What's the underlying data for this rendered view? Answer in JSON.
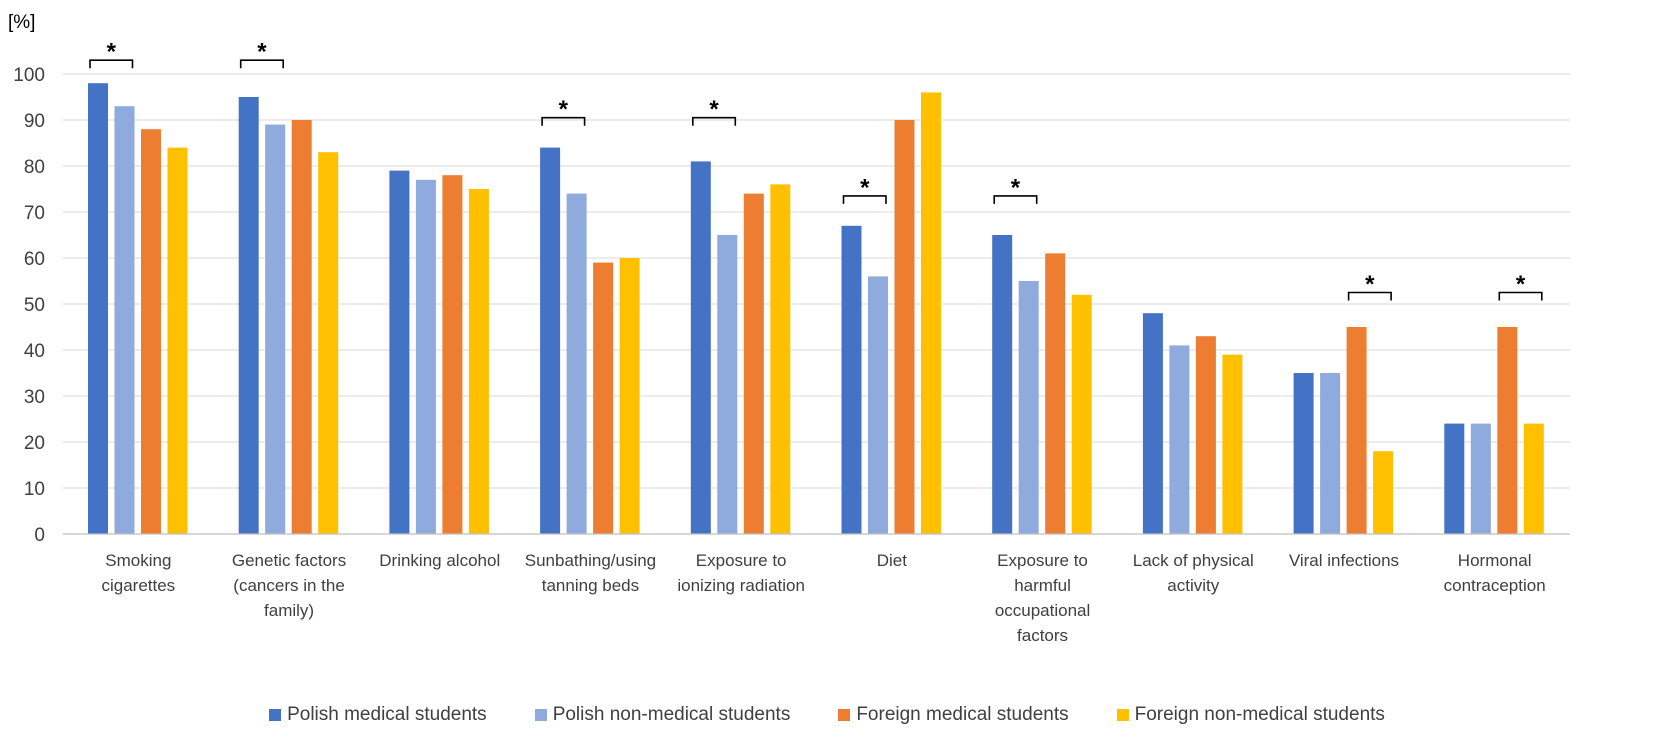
{
  "chart_data": {
    "type": "bar",
    "unit_label": "[%]",
    "ylim": [
      0,
      100
    ],
    "yticks": [
      0,
      10,
      20,
      30,
      40,
      50,
      60,
      70,
      80,
      90,
      100
    ],
    "grid": true,
    "legend_position": "bottom",
    "categories": [
      [
        "Smoking",
        "cigarettes"
      ],
      [
        "Genetic factors",
        "(cancers in the",
        "family)"
      ],
      [
        "Drinking alcohol"
      ],
      [
        "Sunbathing/using",
        "tanning beds"
      ],
      [
        "Exposure to",
        "ionizing radiation"
      ],
      [
        "Diet"
      ],
      [
        "Exposure to",
        "harmful",
        "occupational",
        "factors"
      ],
      [
        "Lack of physical",
        "activity"
      ],
      [
        "Viral infections"
      ],
      [
        "Hormonal",
        "contraception"
      ]
    ],
    "series": [
      {
        "name": "Polish medical students",
        "color": "#4472C4",
        "values": [
          98,
          95,
          79,
          84,
          81,
          67,
          65,
          48,
          35,
          24
        ]
      },
      {
        "name": "Polish non-medical students",
        "color": "#8FAADC",
        "values": [
          93,
          89,
          77,
          74,
          65,
          56,
          55,
          41,
          35,
          24
        ]
      },
      {
        "name": "Foreign medical students",
        "color": "#ED7D31",
        "values": [
          88,
          90,
          78,
          59,
          74,
          90,
          61,
          43,
          45,
          45
        ]
      },
      {
        "name": "Foreign non-medical students",
        "color": "#FFC000",
        "values": [
          84,
          83,
          75,
          60,
          76,
          96,
          52,
          39,
          18,
          24
        ]
      }
    ],
    "significance": [
      {
        "category": 0,
        "from_series": 0,
        "to_series": 1,
        "level": 103,
        "label": "*"
      },
      {
        "category": 1,
        "from_series": 0,
        "to_series": 1,
        "level": 103,
        "label": "*"
      },
      {
        "category": 3,
        "from_series": 0,
        "to_series": 1,
        "level": 90.5,
        "label": "*"
      },
      {
        "category": 4,
        "from_series": 0,
        "to_series": 1,
        "level": 90.5,
        "label": "*"
      },
      {
        "category": 5,
        "from_series": 0,
        "to_series": 1,
        "level": 73.5,
        "label": "*"
      },
      {
        "category": 6,
        "from_series": 0,
        "to_series": 1,
        "level": 73.5,
        "label": "*"
      },
      {
        "category": 8,
        "from_series": 2,
        "to_series": 3,
        "level": 52.5,
        "label": "*"
      },
      {
        "category": 9,
        "from_series": 2,
        "to_series": 3,
        "level": 52.5,
        "label": "*"
      }
    ]
  }
}
